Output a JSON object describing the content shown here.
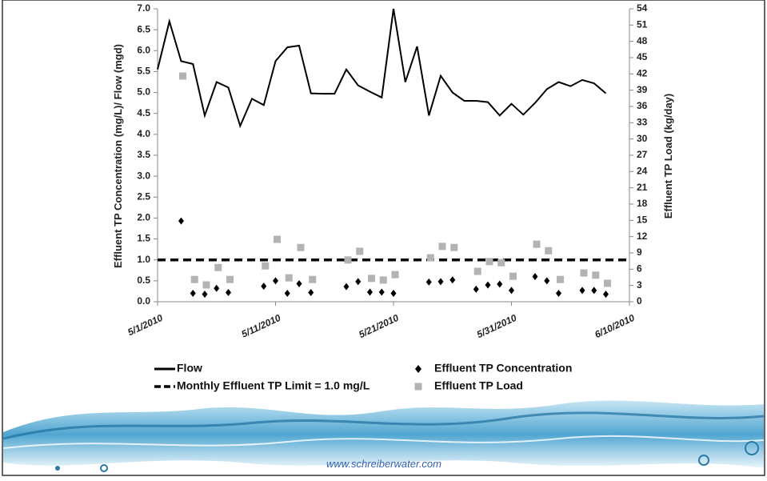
{
  "chart_data": {
    "type": "line",
    "y_label": "Effluent TP Concentration (mg/L)/ Flow (mgd)",
    "y2_label": "Effluent TP Load (kg/day)",
    "x": [
      "5/1/2010",
      "5/2/2010",
      "5/3/2010",
      "5/4/2010",
      "5/5/2010",
      "5/6/2010",
      "5/7/2010",
      "5/8/2010",
      "5/9/2010",
      "5/10/2010",
      "5/11/2010",
      "5/12/2010",
      "5/13/2010",
      "5/14/2010",
      "5/15/2010",
      "5/16/2010",
      "5/17/2010",
      "5/18/2010",
      "5/19/2010",
      "5/20/2010",
      "5/21/2010",
      "5/22/2010",
      "5/23/2010",
      "5/24/2010",
      "5/25/2010",
      "5/26/2010",
      "5/27/2010",
      "5/28/2010",
      "5/29/2010",
      "5/30/2010",
      "5/31/2010",
      "6/1/2010",
      "6/2/2010",
      "6/3/2010",
      "6/4/2010",
      "6/5/2010",
      "6/6/2010",
      "6/7/2010",
      "6/8/2010"
    ],
    "xlim": [
      "5/1/2010",
      "6/10/2010"
    ],
    "xticks": [
      "5/1/2010",
      "5/11/2010",
      "5/21/2010",
      "5/31/2010",
      "6/10/2010"
    ],
    "ylim": [
      0,
      7
    ],
    "yticks": [
      {
        "value": 0,
        "label": "0.0"
      },
      0.5,
      {
        "value": 1,
        "label": "1.0"
      },
      1.5,
      {
        "value": 2,
        "label": "2.0"
      },
      2.5,
      {
        "value": 3,
        "label": "3.0"
      },
      3.5,
      {
        "value": 4,
        "label": "4.0"
      },
      4.5,
      {
        "value": 5,
        "label": "5.0"
      },
      5.5,
      {
        "value": 6,
        "label": "6.0"
      },
      6.5,
      {
        "value": 7,
        "label": "7.0"
      }
    ],
    "y2lim": [
      0,
      54
    ],
    "y2ticks": [
      0,
      3,
      6,
      9,
      12,
      15,
      18,
      21,
      24,
      27,
      30,
      33,
      36,
      39,
      42,
      45,
      48,
      51,
      54
    ],
    "grid": false,
    "series": [
      {
        "name": "Flow",
        "type": "line",
        "color": "#000000",
        "values": [
          5.55,
          6.7,
          5.75,
          5.68,
          4.45,
          5.25,
          5.12,
          4.2,
          4.85,
          4.7,
          5.75,
          6.08,
          6.12,
          4.98,
          4.97,
          4.97,
          5.55,
          5.17,
          5.02,
          4.88,
          7.0,
          5.25,
          6.1,
          4.45,
          5.4,
          5.0,
          4.8,
          4.8,
          4.77,
          4.45,
          4.73,
          4.47,
          4.75,
          5.08,
          5.25,
          5.15,
          5.3,
          5.22,
          4.98
        ]
      },
      {
        "name": "Effluent TP Concentration",
        "type": "scatter",
        "marker": "diamond",
        "color": "#000000",
        "values": [
          null,
          null,
          1.93,
          0.2,
          0.18,
          0.32,
          0.22,
          null,
          null,
          0.37,
          0.5,
          0.2,
          0.43,
          0.22,
          null,
          null,
          0.36,
          0.48,
          0.23,
          0.23,
          0.2,
          null,
          null,
          0.47,
          0.48,
          0.52,
          null,
          0.3,
          0.4,
          0.42,
          0.27,
          null,
          0.6,
          0.5,
          0.2,
          null,
          0.27,
          0.27,
          0.18
        ]
      },
      {
        "name": "Effluent TP Load",
        "type": "scatter",
        "marker": "square",
        "color": "#b3b3b3",
        "axis": "y2",
        "values": [
          null,
          null,
          41.6,
          4.1,
          3.1,
          6.3,
          4.1,
          null,
          null,
          6.6,
          11.5,
          4.4,
          10,
          4.1,
          null,
          null,
          7.7,
          9.3,
          4.3,
          4.0,
          5.0,
          null,
          null,
          8.1,
          10.2,
          10,
          null,
          5.6,
          7.4,
          7.2,
          4.7,
          null,
          10.6,
          9.4,
          4.1,
          null,
          5.3,
          4.9,
          3.4
        ]
      }
    ],
    "reference_line": {
      "name": "Monthly Effluent TP Limit = 1.0 mg/L",
      "value": 1.0,
      "color": "#000000",
      "style": "dashed"
    }
  },
  "footer": "www.schreiberwater.com"
}
